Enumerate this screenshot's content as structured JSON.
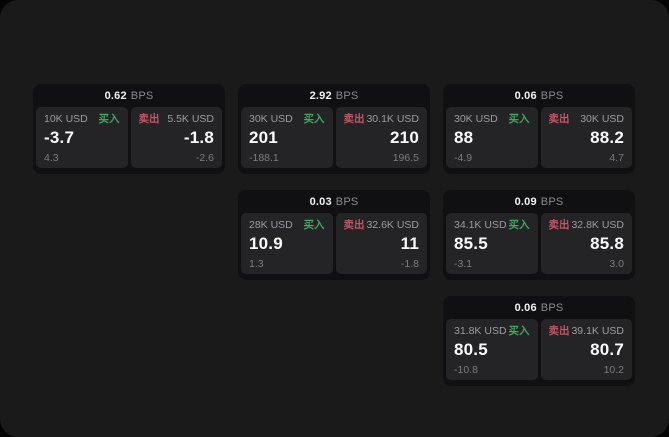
{
  "labels": {
    "bps_unit": "BPS",
    "buy": "买入",
    "sell": "卖出"
  },
  "colors": {
    "buy_accent": "#40a55e",
    "sell_accent": "#c05666",
    "panel_background": "#1a1a1b",
    "card_background": "#101012",
    "tile_background": "#242427"
  },
  "cards": [
    {
      "bps": "0.62",
      "buy": {
        "amount": "10K USD",
        "value": "-3.7",
        "sub": "4.3"
      },
      "sell": {
        "amount": "5.5K USD",
        "value": "-1.8",
        "sub": "-2.6"
      }
    },
    {
      "bps": "2.92",
      "buy": {
        "amount": "30K USD",
        "value": "201",
        "sub": "-188.1"
      },
      "sell": {
        "amount": "30.1K USD",
        "value": "210",
        "sub": "196.5"
      }
    },
    {
      "bps": "0.06",
      "buy": {
        "amount": "30K USD",
        "value": "88",
        "sub": "-4.9"
      },
      "sell": {
        "amount": "30K USD",
        "value": "88.2",
        "sub": "4.7"
      }
    },
    {
      "bps": "0.03",
      "buy": {
        "amount": "28K USD",
        "value": "10.9",
        "sub": "1.3"
      },
      "sell": {
        "amount": "32.6K USD",
        "value": "11",
        "sub": "-1.8"
      }
    },
    {
      "bps": "0.09",
      "buy": {
        "amount": "34.1K USD",
        "value": "85.5",
        "sub": "-3.1"
      },
      "sell": {
        "amount": "32.8K USD",
        "value": "85.8",
        "sub": "3.0"
      }
    },
    {
      "bps": "0.06",
      "buy": {
        "amount": "31.8K USD",
        "value": "80.5",
        "sub": "-10.8"
      },
      "sell": {
        "amount": "39.1K USD",
        "value": "80.7",
        "sub": "10.2"
      }
    }
  ]
}
